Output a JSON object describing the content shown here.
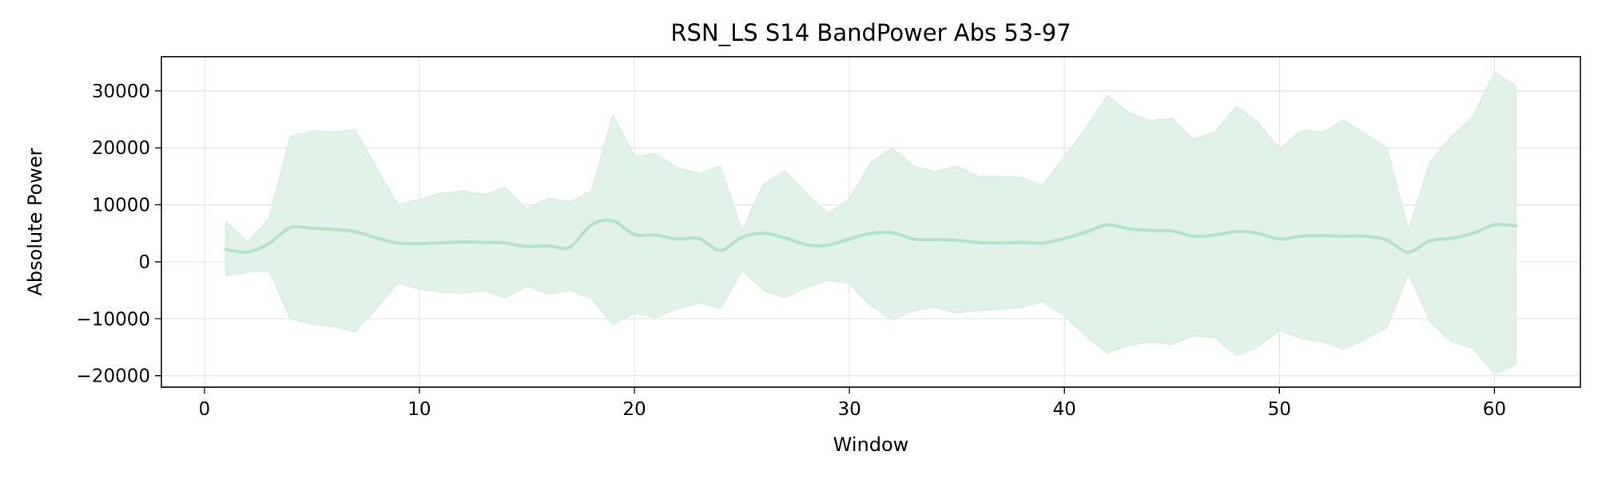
{
  "chart_data": {
    "type": "area",
    "title": "RSN_LS S14 BandPower Abs 53-97",
    "xlabel": "Window",
    "ylabel": "Absolute Power",
    "xlim": [
      -2,
      64
    ],
    "ylim": [
      -22000,
      36000
    ],
    "xticks": [
      0,
      10,
      20,
      30,
      40,
      50,
      60
    ],
    "yticks": [
      -20000,
      -10000,
      0,
      10000,
      20000,
      30000
    ],
    "xtick_labels": [
      "0",
      "10",
      "20",
      "30",
      "40",
      "50",
      "60"
    ],
    "ytick_labels": [
      "−20000",
      "−10000",
      "0",
      "10000",
      "20000",
      "30000"
    ],
    "grid": true,
    "colors": {
      "line": "#b2e2c8",
      "band": "#e1f3e8",
      "band_edge": "#d3ecdd"
    },
    "x": [
      1,
      2,
      3,
      4,
      5,
      6,
      7,
      8,
      9,
      10,
      11,
      12,
      13,
      14,
      15,
      16,
      17,
      18,
      19,
      20,
      21,
      22,
      23,
      24,
      25,
      26,
      27,
      28,
      29,
      30,
      31,
      32,
      33,
      34,
      35,
      36,
      37,
      38,
      39,
      40,
      41,
      42,
      43,
      44,
      45,
      46,
      47,
      48,
      49,
      50,
      51,
      52,
      53,
      54,
      55,
      56,
      57,
      58,
      59,
      60,
      61
    ],
    "series": [
      {
        "values": [
          2200,
          1700,
          3200,
          6000,
          5900,
          5700,
          5300,
          4200,
          3300,
          3200,
          3300,
          3500,
          3400,
          3300,
          2700,
          2800,
          2600,
          6500,
          7200,
          4800,
          4700,
          4000,
          4100,
          2000,
          4300,
          5000,
          4200,
          3000,
          2900,
          4000,
          5000,
          5100,
          4000,
          3900,
          3800,
          3400,
          3300,
          3400,
          3300,
          4100,
          5200,
          6500,
          5800,
          5500,
          5400,
          4500,
          4700,
          5300,
          5000,
          4000,
          4500,
          4600,
          4500,
          4500,
          3800,
          1700,
          3700,
          4100,
          5000,
          6500,
          6300
        ],
        "upper": [
          7000,
          3500,
          7500,
          22000,
          23000,
          22800,
          23200,
          16500,
          10000,
          11000,
          12000,
          12500,
          11800,
          13000,
          9300,
          11200,
          10500,
          12500,
          25800,
          18500,
          19000,
          16500,
          15500,
          16800,
          5500,
          13600,
          16000,
          12000,
          8500,
          11000,
          17500,
          20000,
          16800,
          15800,
          16800,
          15000,
          15000,
          14800,
          13500,
          18500,
          23500,
          29200,
          26200,
          24800,
          25200,
          21500,
          22800,
          27300,
          24500,
          19800,
          23000,
          22800,
          24800,
          22400,
          20000,
          5500,
          17500,
          22000,
          25500,
          33300,
          30800
        ],
        "lower": [
          -2500,
          -1800,
          -1500,
          -10000,
          -11000,
          -11300,
          -12300,
          -8200,
          -3700,
          -4800,
          -5300,
          -5500,
          -5000,
          -6300,
          -4300,
          -5700,
          -5000,
          -6500,
          -11000,
          -9000,
          -9800,
          -8200,
          -7200,
          -8200,
          -1500,
          -5000,
          -6300,
          -4500,
          -3200,
          -3800,
          -7700,
          -10200,
          -8500,
          -8000,
          -9000,
          -8500,
          -8300,
          -8000,
          -7000,
          -9500,
          -13000,
          -16000,
          -14700,
          -14000,
          -14500,
          -13000,
          -13300,
          -16500,
          -15000,
          -12000,
          -13500,
          -14000,
          -15400,
          -13500,
          -11500,
          -2000,
          -10500,
          -14000,
          -15200,
          -19700,
          -18000
        ]
      }
    ]
  }
}
